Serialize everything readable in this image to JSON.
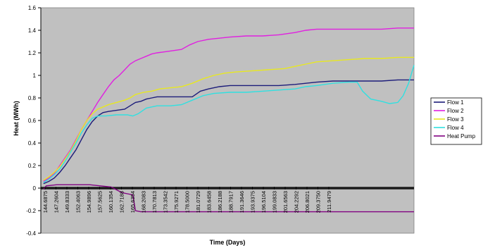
{
  "chart_data": {
    "type": "line",
    "xlabel": "Time (Days)",
    "ylabel": "Heat (MWh)",
    "ylim": [
      -0.4,
      1.6
    ],
    "y_ticks": [
      "-0.4",
      "-0.2",
      "0",
      "0.2",
      "0.4",
      "0.6",
      "0.8",
      "1",
      "1.2",
      "1.4",
      "1.6"
    ],
    "x_tick_labels": [
      "144.6875",
      "147.2604",
      "149.8333",
      "152.4063",
      "154.9896",
      "157.5625",
      "160.1354",
      "162.7188",
      "165.6354",
      "168.2083",
      "170.7813",
      "173.3542",
      "175.9271",
      "178.5000",
      "181.0729",
      "183.6458",
      "186.2188",
      "188.7917",
      "191.3646",
      "193.9375",
      "196.5104",
      "199.0833",
      "201.6563",
      "204.2292",
      "206.8021",
      "209.3750",
      "211.9479"
    ],
    "xlim": [
      144.0,
      213.0
    ],
    "plot_background": "#c0c0c0",
    "grid": false,
    "legend_position": "right",
    "series": [
      {
        "name": "Flow 1",
        "color": "#1c1c7a",
        "points": [
          [
            144.5,
            0.04
          ],
          [
            145.5,
            0.06
          ],
          [
            146.5,
            0.09
          ],
          [
            147.5,
            0.14
          ],
          [
            148.5,
            0.2
          ],
          [
            149.5,
            0.27
          ],
          [
            150.5,
            0.34
          ],
          [
            151.5,
            0.43
          ],
          [
            152.5,
            0.52
          ],
          [
            153.5,
            0.59
          ],
          [
            154.5,
            0.64
          ],
          [
            155.5,
            0.67
          ],
          [
            156.5,
            0.68
          ],
          [
            158.0,
            0.69
          ],
          [
            159.5,
            0.7
          ],
          [
            160.5,
            0.73
          ],
          [
            161.5,
            0.76
          ],
          [
            162.5,
            0.77
          ],
          [
            163.5,
            0.79
          ],
          [
            164.5,
            0.8
          ],
          [
            165.5,
            0.81
          ],
          [
            166.5,
            0.81
          ],
          [
            168.0,
            0.81
          ],
          [
            170.0,
            0.81
          ],
          [
            172.0,
            0.81
          ],
          [
            173.5,
            0.86
          ],
          [
            175.0,
            0.88
          ],
          [
            177.0,
            0.9
          ],
          [
            179.0,
            0.91
          ],
          [
            182.0,
            0.91
          ],
          [
            185.0,
            0.91
          ],
          [
            188.0,
            0.91
          ],
          [
            191.0,
            0.92
          ],
          [
            193.0,
            0.93
          ],
          [
            195.0,
            0.94
          ],
          [
            198.0,
            0.95
          ],
          [
            201.0,
            0.95
          ],
          [
            204.0,
            0.95
          ],
          [
            207.0,
            0.95
          ],
          [
            210.0,
            0.96
          ],
          [
            213.0,
            0.96
          ]
        ]
      },
      {
        "name": "Flow 2",
        "color": "#e020e0",
        "points": [
          [
            144.5,
            0.06
          ],
          [
            145.5,
            0.09
          ],
          [
            146.5,
            0.13
          ],
          [
            147.5,
            0.2
          ],
          [
            148.5,
            0.27
          ],
          [
            149.5,
            0.34
          ],
          [
            150.5,
            0.43
          ],
          [
            151.5,
            0.52
          ],
          [
            152.5,
            0.6
          ],
          [
            153.5,
            0.68
          ],
          [
            154.5,
            0.76
          ],
          [
            155.5,
            0.83
          ],
          [
            156.5,
            0.9
          ],
          [
            157.5,
            0.96
          ],
          [
            158.5,
            1.0
          ],
          [
            159.5,
            1.05
          ],
          [
            160.5,
            1.1
          ],
          [
            161.5,
            1.13
          ],
          [
            162.5,
            1.15
          ],
          [
            163.5,
            1.17
          ],
          [
            164.5,
            1.19
          ],
          [
            165.5,
            1.2
          ],
          [
            167.0,
            1.21
          ],
          [
            168.5,
            1.22
          ],
          [
            170.0,
            1.23
          ],
          [
            171.5,
            1.27
          ],
          [
            173.0,
            1.3
          ],
          [
            175.0,
            1.32
          ],
          [
            177.0,
            1.33
          ],
          [
            179.0,
            1.34
          ],
          [
            182.0,
            1.35
          ],
          [
            185.0,
            1.35
          ],
          [
            188.0,
            1.36
          ],
          [
            191.0,
            1.38
          ],
          [
            193.0,
            1.4
          ],
          [
            195.0,
            1.41
          ],
          [
            199.0,
            1.41
          ],
          [
            203.0,
            1.41
          ],
          [
            207.0,
            1.41
          ],
          [
            210.0,
            1.42
          ],
          [
            213.0,
            1.42
          ]
        ]
      },
      {
        "name": "Flow 3",
        "color": "#e8e820",
        "points": [
          [
            144.5,
            0.07
          ],
          [
            145.5,
            0.1
          ],
          [
            146.5,
            0.14
          ],
          [
            147.5,
            0.19
          ],
          [
            148.5,
            0.26
          ],
          [
            149.5,
            0.33
          ],
          [
            150.5,
            0.42
          ],
          [
            151.5,
            0.52
          ],
          [
            152.5,
            0.6
          ],
          [
            153.5,
            0.66
          ],
          [
            154.5,
            0.7
          ],
          [
            155.5,
            0.72
          ],
          [
            156.5,
            0.74
          ],
          [
            158.0,
            0.76
          ],
          [
            159.5,
            0.78
          ],
          [
            160.5,
            0.8
          ],
          [
            161.5,
            0.83
          ],
          [
            163.0,
            0.85
          ],
          [
            164.5,
            0.86
          ],
          [
            166.0,
            0.88
          ],
          [
            168.0,
            0.89
          ],
          [
            170.0,
            0.9
          ],
          [
            172.0,
            0.93
          ],
          [
            174.0,
            0.97
          ],
          [
            176.0,
            1.0
          ],
          [
            178.0,
            1.02
          ],
          [
            180.0,
            1.03
          ],
          [
            183.0,
            1.04
          ],
          [
            186.0,
            1.05
          ],
          [
            189.0,
            1.06
          ],
          [
            191.0,
            1.08
          ],
          [
            193.0,
            1.1
          ],
          [
            195.0,
            1.12
          ],
          [
            198.0,
            1.13
          ],
          [
            201.0,
            1.14
          ],
          [
            204.0,
            1.15
          ],
          [
            207.0,
            1.15
          ],
          [
            210.0,
            1.16
          ],
          [
            213.0,
            1.16
          ]
        ]
      },
      {
        "name": "Flow 4",
        "color": "#30e0e0",
        "points": [
          [
            144.5,
            0.05
          ],
          [
            145.5,
            0.08
          ],
          [
            146.5,
            0.12
          ],
          [
            147.5,
            0.17
          ],
          [
            148.5,
            0.24
          ],
          [
            149.5,
            0.32
          ],
          [
            150.5,
            0.4
          ],
          [
            151.5,
            0.49
          ],
          [
            152.5,
            0.56
          ],
          [
            153.5,
            0.62
          ],
          [
            154.5,
            0.64
          ],
          [
            156.0,
            0.64
          ],
          [
            158.0,
            0.65
          ],
          [
            160.0,
            0.65
          ],
          [
            161.0,
            0.64
          ],
          [
            162.0,
            0.66
          ],
          [
            163.5,
            0.71
          ],
          [
            165.5,
            0.73
          ],
          [
            168.0,
            0.73
          ],
          [
            170.0,
            0.74
          ],
          [
            172.0,
            0.78
          ],
          [
            174.0,
            0.82
          ],
          [
            176.0,
            0.84
          ],
          [
            179.0,
            0.85
          ],
          [
            182.0,
            0.85
          ],
          [
            185.0,
            0.86
          ],
          [
            188.0,
            0.87
          ],
          [
            191.0,
            0.88
          ],
          [
            193.0,
            0.9
          ],
          [
            195.0,
            0.91
          ],
          [
            198.0,
            0.93
          ],
          [
            201.0,
            0.94
          ],
          [
            202.5,
            0.94
          ],
          [
            203.5,
            0.86
          ],
          [
            205.0,
            0.79
          ],
          [
            207.0,
            0.77
          ],
          [
            208.5,
            0.75
          ],
          [
            210.0,
            0.76
          ],
          [
            211.0,
            0.82
          ],
          [
            212.0,
            0.93
          ],
          [
            213.0,
            1.09
          ]
        ]
      },
      {
        "name": "Heat Pump",
        "color": "#800080",
        "points": [
          [
            144.5,
            -0.01
          ],
          [
            145.0,
            0.02
          ],
          [
            147.0,
            0.03
          ],
          [
            149.0,
            0.03
          ],
          [
            151.0,
            0.03
          ],
          [
            153.0,
            0.03
          ],
          [
            155.0,
            0.02
          ],
          [
            157.0,
            0.01
          ],
          [
            159.0,
            -0.04
          ],
          [
            160.0,
            -0.05
          ],
          [
            161.0,
            -0.06
          ],
          [
            161.5,
            -0.2
          ],
          [
            162.5,
            -0.21
          ],
          [
            165.0,
            -0.21
          ],
          [
            170.0,
            -0.21
          ],
          [
            175.0,
            -0.21
          ],
          [
            180.0,
            -0.21
          ],
          [
            185.0,
            -0.21
          ],
          [
            190.0,
            -0.21
          ],
          [
            195.0,
            -0.21
          ],
          [
            200.0,
            -0.21
          ],
          [
            205.0,
            -0.21
          ],
          [
            210.0,
            -0.21
          ],
          [
            213.0,
            -0.21
          ]
        ]
      }
    ]
  }
}
